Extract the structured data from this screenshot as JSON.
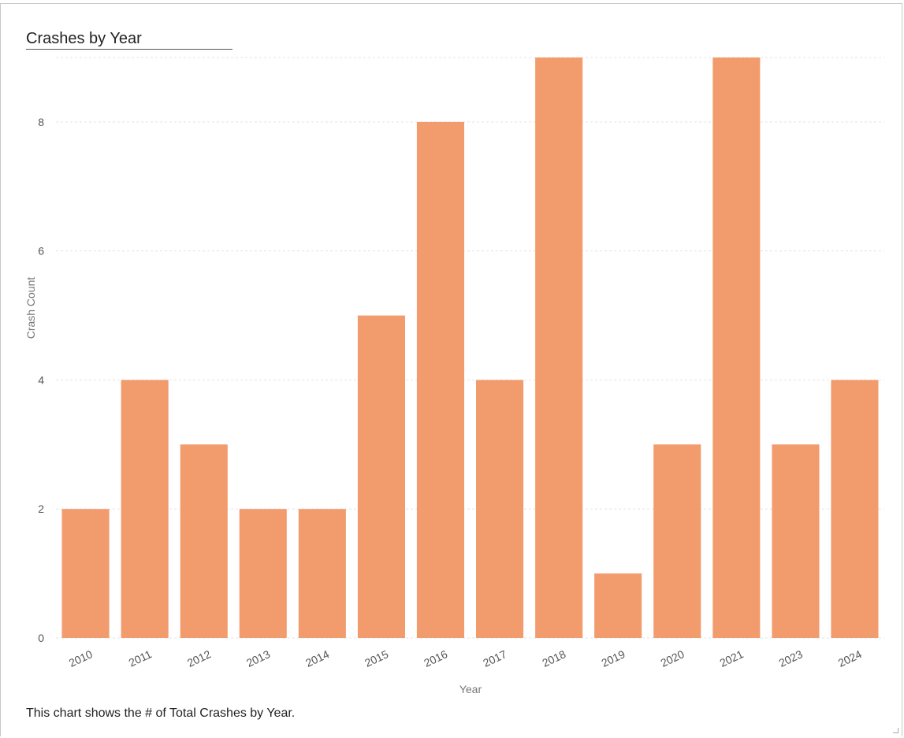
{
  "card": {
    "title": "Crashes by Year",
    "caption": "This chart shows the # of Total Crashes by Year."
  },
  "colors": {
    "bar": "#f29c6e",
    "grid": "#e3e3e3"
  },
  "chart_data": {
    "type": "bar",
    "title": "Crashes by Year",
    "xlabel": "Year",
    "ylabel": "Crash Count",
    "categories": [
      "2010",
      "2011",
      "2012",
      "2013",
      "2014",
      "2015",
      "2016",
      "2017",
      "2018",
      "2019",
      "2020",
      "2021",
      "2023",
      "2024"
    ],
    "values": [
      2,
      4,
      3,
      2,
      2,
      5,
      8,
      4,
      9,
      1,
      3,
      9,
      3,
      4
    ],
    "ylim": [
      0,
      9
    ],
    "yticks": [
      0,
      2,
      4,
      6,
      8
    ],
    "grid": true,
    "legend": "none"
  }
}
